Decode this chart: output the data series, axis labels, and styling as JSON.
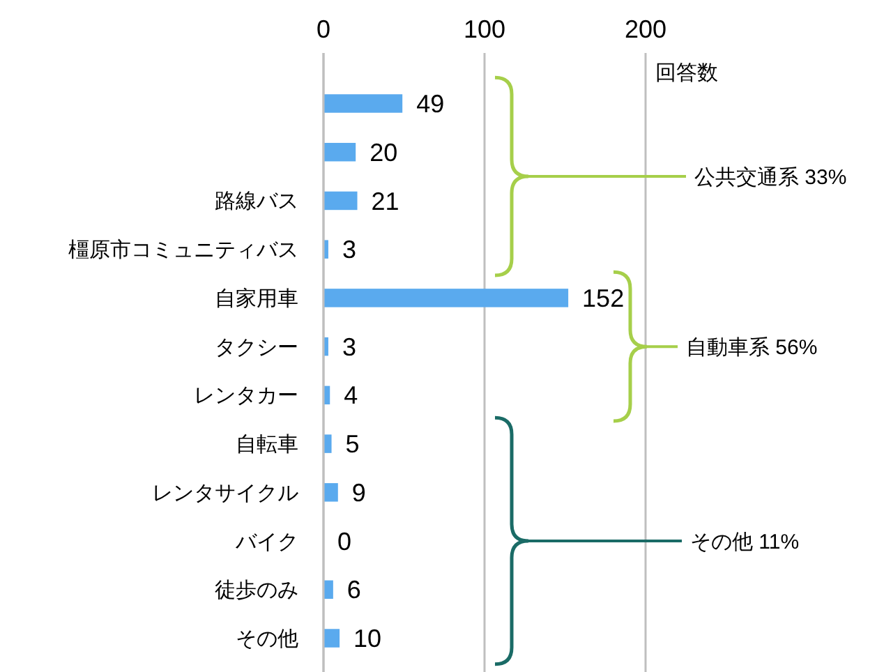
{
  "chart_data": {
    "type": "bar",
    "orientation": "horizontal",
    "xlabel": "回答数",
    "categories": [
      null,
      null,
      "路線バス",
      "橿原市コミュニティバス",
      "自家用車",
      "タクシー",
      "レンタカー",
      "自転車",
      "レンタサイクル",
      "バイク",
      "徒歩のみ",
      "その他"
    ],
    "values": [
      49,
      20,
      21,
      3,
      152,
      3,
      4,
      5,
      9,
      0,
      6,
      10
    ],
    "color": "#5aaaee",
    "xlim": [
      0,
      200
    ],
    "xticks": [
      0,
      100,
      200
    ],
    "grid": "x",
    "data_labels": true,
    "annotations": [
      "公共交通系 33%",
      "自動車系 56%",
      "その他 11%"
    ]
  }
}
